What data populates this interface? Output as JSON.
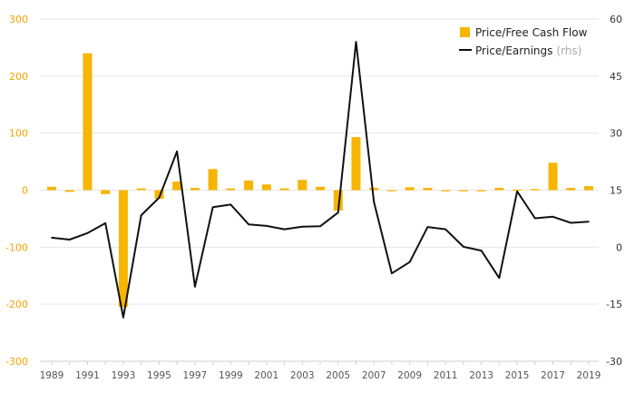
{
  "chart_data": {
    "type": "bar+line",
    "x": [
      1989,
      1990,
      1991,
      1992,
      1993,
      1994,
      1995,
      1996,
      1997,
      1998,
      1999,
      2000,
      2001,
      2002,
      2003,
      2004,
      2005,
      2006,
      2007,
      2008,
      2009,
      2010,
      2011,
      2012,
      2013,
      2014,
      2015,
      2016,
      2017,
      2018,
      2019
    ],
    "x_tick_labels": [
      "1989",
      "1991",
      "1993",
      "1995",
      "1997",
      "1999",
      "2001",
      "2003",
      "2005",
      "2007",
      "2009",
      "2011",
      "2013",
      "2015",
      "2017",
      "2019"
    ],
    "y_left": {
      "ylim": [
        -300,
        300
      ],
      "ticks": [
        -300,
        -200,
        -100,
        0,
        100,
        200,
        300
      ],
      "color": "#f0a500"
    },
    "y_right": {
      "ylim": [
        -30,
        60
      ],
      "ticks": [
        -30,
        -15,
        0,
        15,
        30,
        45,
        60
      ]
    },
    "grid": true,
    "legend_position": "top-right",
    "series": [
      {
        "name": "Price/Free Cash Flow",
        "kind": "bar",
        "axis": "left",
        "color": "#f7b500",
        "values": [
          6,
          -3,
          240,
          -7,
          -205,
          3,
          -15,
          15,
          4,
          37,
          3,
          17,
          10,
          3,
          18,
          6,
          -36,
          93,
          4,
          0,
          5,
          4,
          -2,
          -2,
          -2,
          4,
          1,
          2,
          48,
          4,
          7
        ]
      },
      {
        "name": "Price/Earnings",
        "note": "(rhs)",
        "kind": "line",
        "axis": "right",
        "color": "#111111",
        "values": [
          2.5,
          2,
          3.7,
          6.3,
          -18.5,
          8.4,
          13,
          25.2,
          -10.4,
          10.5,
          11.2,
          6,
          5.6,
          4.7,
          5.4,
          5.5,
          9.1,
          54,
          11.9,
          -6.9,
          -3.9,
          5.3,
          4.7,
          0.1,
          -0.9,
          -8.1,
          14.7,
          7.6,
          8,
          6.4,
          6.7
        ]
      }
    ]
  }
}
